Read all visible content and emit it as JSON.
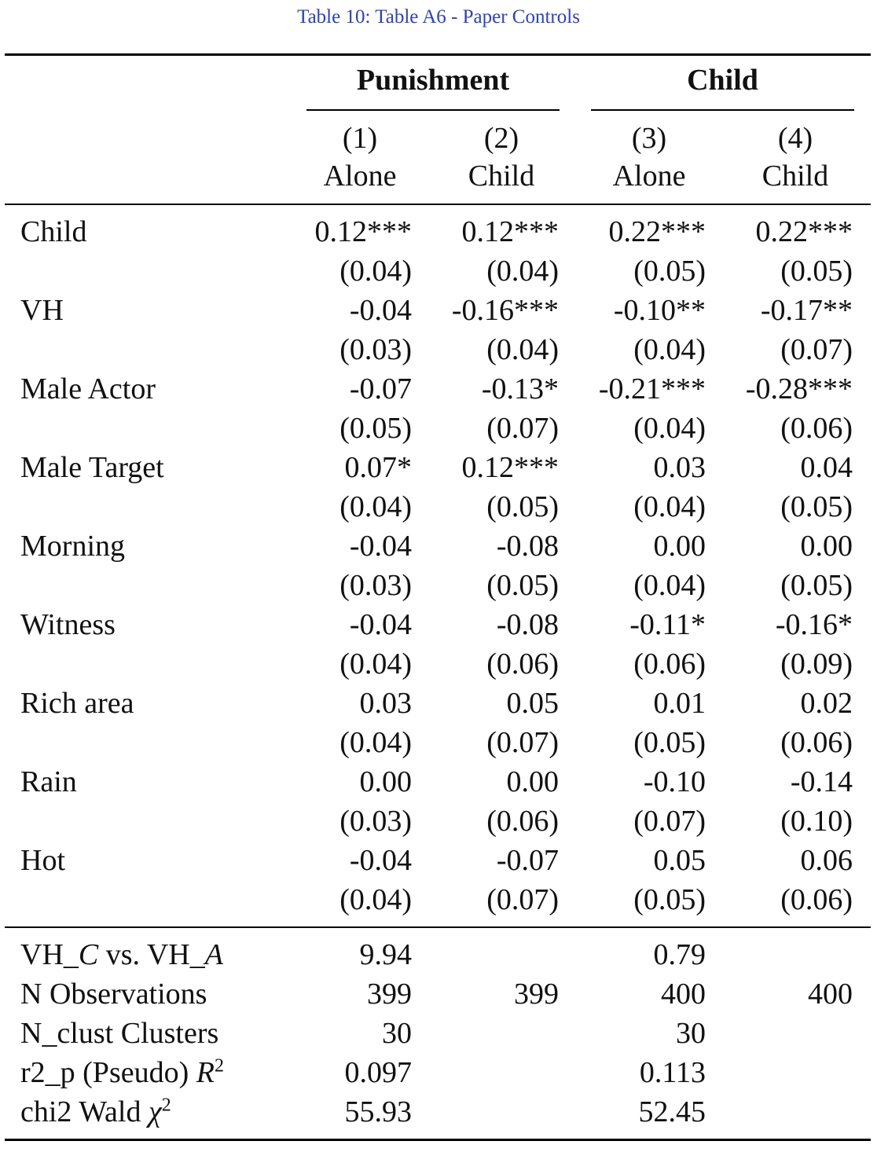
{
  "caption": "Table 10: Table A6 - Paper Controls",
  "groups": {
    "punishment": "Punishment",
    "child": "Child"
  },
  "columns": [
    {
      "num": "(1)",
      "name": "Alone"
    },
    {
      "num": "(2)",
      "name": "Child"
    },
    {
      "num": "(3)",
      "name": "Alone"
    },
    {
      "num": "(4)",
      "name": "Child"
    }
  ],
  "rows": [
    {
      "label": "Child",
      "coef": [
        "0.12***",
        "0.12***",
        "0.22***",
        "0.22***"
      ],
      "se": [
        "(0.04)",
        "(0.04)",
        "(0.05)",
        "(0.05)"
      ]
    },
    {
      "label": "VH",
      "coef": [
        "-0.04",
        "-0.16***",
        "-0.10**",
        "-0.17**"
      ],
      "se": [
        "(0.03)",
        "(0.04)",
        "(0.04)",
        "(0.07)"
      ]
    },
    {
      "label": "Male Actor",
      "coef": [
        "-0.07",
        "-0.13*",
        "-0.21***",
        "-0.28***"
      ],
      "se": [
        "(0.05)",
        "(0.07)",
        "(0.04)",
        "(0.06)"
      ]
    },
    {
      "label": "Male Target",
      "coef": [
        "0.07*",
        "0.12***",
        "0.03",
        "0.04"
      ],
      "se": [
        "(0.04)",
        "(0.05)",
        "(0.04)",
        "(0.05)"
      ]
    },
    {
      "label": "Morning",
      "coef": [
        "-0.04",
        "-0.08",
        "0.00",
        "0.00"
      ],
      "se": [
        "(0.03)",
        "(0.05)",
        "(0.04)",
        "(0.05)"
      ]
    },
    {
      "label": "Witness",
      "coef": [
        "-0.04",
        "-0.08",
        "-0.11*",
        "-0.16*"
      ],
      "se": [
        "(0.04)",
        "(0.06)",
        "(0.06)",
        "(0.09)"
      ]
    },
    {
      "label": "Rich area",
      "coef": [
        "0.03",
        "0.05",
        "0.01",
        "0.02"
      ],
      "se": [
        "(0.04)",
        "(0.07)",
        "(0.05)",
        "(0.06)"
      ]
    },
    {
      "label": "Rain",
      "coef": [
        "0.00",
        "0.00",
        "-0.10",
        "-0.14"
      ],
      "se": [
        "(0.03)",
        "(0.06)",
        "(0.07)",
        "(0.10)"
      ]
    },
    {
      "label": "Hot",
      "coef": [
        "-0.04",
        "-0.07",
        "0.05",
        "0.06"
      ],
      "se": [
        "(0.04)",
        "(0.07)",
        "(0.05)",
        "(0.06)"
      ]
    }
  ],
  "stats": {
    "vh": {
      "label_a": "VH_",
      "label_a_it": "C",
      "label_b": " vs. VH_",
      "label_b_it": "A",
      "values": [
        "9.94",
        "",
        "0.79",
        ""
      ]
    },
    "nobs": {
      "label": "N Observations",
      "values": [
        "399",
        "399",
        "400",
        "400"
      ]
    },
    "nclust": {
      "label": "N_clust Clusters",
      "values": [
        "30",
        "",
        "30",
        ""
      ]
    },
    "r2": {
      "label": "r2_p (Pseudo) ",
      "label_it": "R",
      "label_sup": "2",
      "values": [
        "0.097",
        "",
        "0.113",
        ""
      ]
    },
    "chi2": {
      "label": "chi2 Wald ",
      "label_it": "χ",
      "label_sup": "2",
      "values": [
        "55.93",
        "",
        "52.45",
        ""
      ]
    }
  }
}
